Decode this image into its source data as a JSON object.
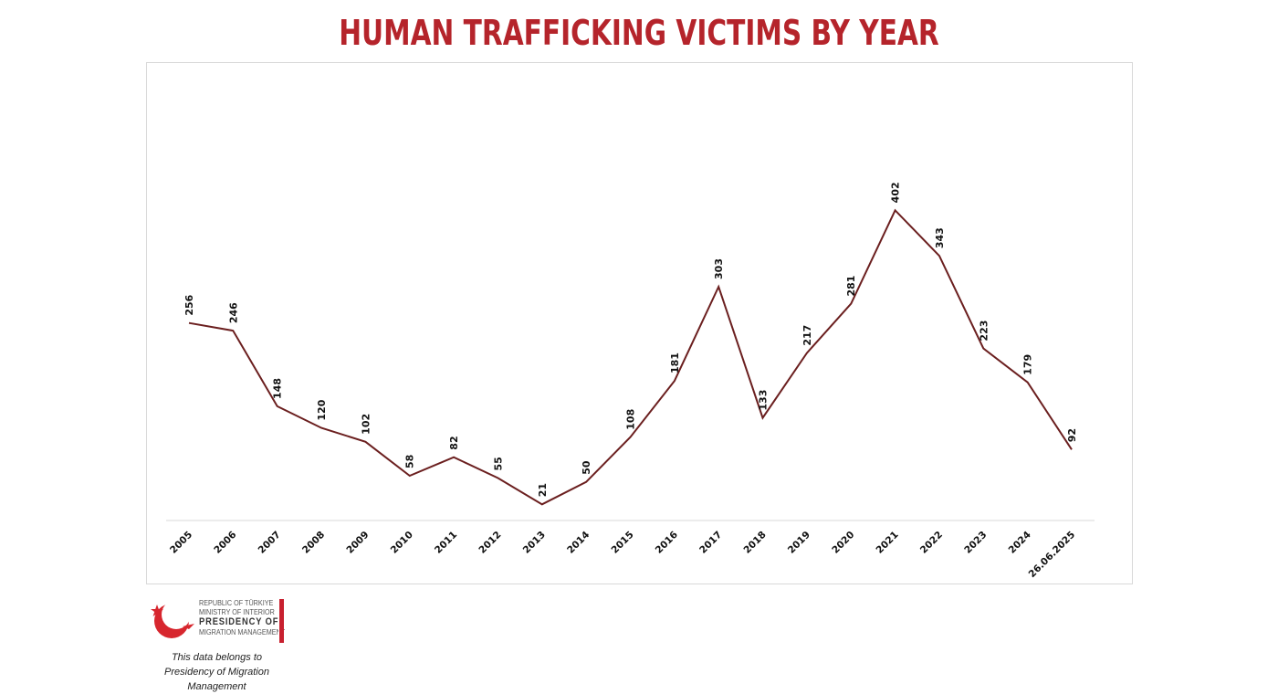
{
  "chart_data": {
    "type": "line",
    "title": "HUMAN TRAFFICKING VICTIMS BY YEAR",
    "xlabel": "",
    "ylabel": "",
    "categories": [
      "2005",
      "2006",
      "2007",
      "2008",
      "2009",
      "2010",
      "2011",
      "2012",
      "2013",
      "2014",
      "2015",
      "2016",
      "2017",
      "2018",
      "2019",
      "2020",
      "2021",
      "2022",
      "2023",
      "2024",
      "26.06.2025"
    ],
    "series": [
      {
        "values": [
          256,
          246,
          148,
          120,
          102,
          58,
          82,
          55,
          21,
          50,
          108,
          181,
          303,
          133,
          217,
          281,
          402,
          343,
          223,
          179,
          92
        ]
      }
    ],
    "ylim": [
      0,
      450
    ],
    "grid": false,
    "legend": "none",
    "data_labels": true,
    "colors": {
      "line": "#6b1f1f",
      "title": "#b5242b",
      "labels": "#111111"
    }
  },
  "footer": {
    "org_line1": "REPUBLIC OF TÜRKIYE",
    "org_line2": "MINISTRY OF INTERIOR",
    "org_line3": "PRESIDENCY OF",
    "org_line4": "MIGRATION MANAGEMENT",
    "credit_line1": "This data belongs to",
    "credit_line2": "Presidency of Migration Management"
  }
}
